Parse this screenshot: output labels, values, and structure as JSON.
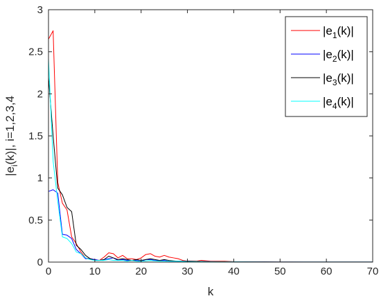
{
  "chart_data": {
    "type": "line",
    "xlabel": "k",
    "ylabel": "|e_i(k)|, i=1,2,3,4",
    "ylabel_parts": {
      "pre": "|e",
      "sub": "i",
      "post": "(k)|, i=1,2,3,4"
    },
    "xlim": [
      0,
      70
    ],
    "ylim": [
      0,
      3
    ],
    "x_ticks": [
      0,
      10,
      20,
      30,
      40,
      50,
      60,
      70
    ],
    "x_tick_labels": [
      "0",
      "10",
      "20",
      "30",
      "40",
      "50",
      "60",
      "70"
    ],
    "y_ticks": [
      0,
      0.5,
      1,
      1.5,
      2,
      2.5,
      3
    ],
    "y_tick_labels": [
      "0",
      "0.5",
      "1",
      "1.5",
      "2",
      "2.5",
      "3"
    ],
    "grid": false,
    "legend_position": "top-right",
    "series": [
      {
        "name": "|e1(k)|",
        "label_pre": "|e",
        "label_sub": "1",
        "label_post": "(k)|",
        "color": "#ff0000",
        "points": [
          [
            0,
            2.65
          ],
          [
            1,
            2.75
          ],
          [
            2,
            0.95
          ],
          [
            3,
            0.7
          ],
          [
            4,
            0.62
          ],
          [
            5,
            0.3
          ],
          [
            6,
            0.22
          ],
          [
            7,
            0.12
          ],
          [
            8,
            0.05
          ],
          [
            9,
            0.04
          ],
          [
            10,
            0.03
          ],
          [
            11,
            0.02
          ],
          [
            12,
            0.06
          ],
          [
            13,
            0.11
          ],
          [
            14,
            0.1
          ],
          [
            15,
            0.05
          ],
          [
            16,
            0.08
          ],
          [
            17,
            0.04
          ],
          [
            18,
            0.04
          ],
          [
            19,
            0.03
          ],
          [
            20,
            0.05
          ],
          [
            21,
            0.09
          ],
          [
            22,
            0.1
          ],
          [
            23,
            0.07
          ],
          [
            24,
            0.06
          ],
          [
            25,
            0.08
          ],
          [
            26,
            0.06
          ],
          [
            27,
            0.05
          ],
          [
            28,
            0.04
          ],
          [
            29,
            0.02
          ],
          [
            30,
            0.01
          ],
          [
            32,
            0.01
          ],
          [
            33,
            0.02
          ],
          [
            35,
            0.01
          ],
          [
            38,
            0.01
          ],
          [
            40,
            0.005
          ],
          [
            45,
            0.003
          ],
          [
            50,
            0.002
          ],
          [
            55,
            0.001
          ],
          [
            60,
            0.001
          ],
          [
            65,
            0.001
          ],
          [
            70,
            0.001
          ]
        ]
      },
      {
        "name": "|e2(k)|",
        "label_pre": "|e",
        "label_sub": "2",
        "label_post": "(k)|",
        "color": "#0000ff",
        "points": [
          [
            0,
            0.84
          ],
          [
            1,
            0.86
          ],
          [
            2,
            0.82
          ],
          [
            3,
            0.33
          ],
          [
            4,
            0.32
          ],
          [
            5,
            0.28
          ],
          [
            6,
            0.15
          ],
          [
            7,
            0.1
          ],
          [
            8,
            0.04
          ],
          [
            9,
            0.04
          ],
          [
            10,
            0.03
          ],
          [
            11,
            0.02
          ],
          [
            12,
            0.03
          ],
          [
            13,
            0.04
          ],
          [
            14,
            0.05
          ],
          [
            15,
            0.02
          ],
          [
            16,
            0.03
          ],
          [
            17,
            0.02
          ],
          [
            18,
            0.02
          ],
          [
            19,
            0.02
          ],
          [
            20,
            0.01
          ],
          [
            21,
            0.03
          ],
          [
            22,
            0.03
          ],
          [
            23,
            0.02
          ],
          [
            24,
            0.02
          ],
          [
            25,
            0.02
          ],
          [
            26,
            0.01
          ],
          [
            28,
            0.01
          ],
          [
            30,
            0.01
          ],
          [
            35,
            0.005
          ],
          [
            40,
            0.003
          ],
          [
            45,
            0.002
          ],
          [
            50,
            0.001
          ],
          [
            60,
            0.001
          ],
          [
            70,
            0.001
          ]
        ]
      },
      {
        "name": "|e3(k)|",
        "label_pre": "|e",
        "label_sub": "3",
        "label_post": "(k)|",
        "color": "#000000",
        "points": [
          [
            0,
            2.2
          ],
          [
            1,
            1.5
          ],
          [
            2,
            0.88
          ],
          [
            3,
            0.8
          ],
          [
            4,
            0.65
          ],
          [
            5,
            0.6
          ],
          [
            6,
            0.2
          ],
          [
            7,
            0.15
          ],
          [
            8,
            0.08
          ],
          [
            9,
            0.04
          ],
          [
            10,
            0.02
          ],
          [
            11,
            0.02
          ],
          [
            12,
            0.03
          ],
          [
            13,
            0.07
          ],
          [
            14,
            0.05
          ],
          [
            15,
            0.03
          ],
          [
            16,
            0.04
          ],
          [
            17,
            0.03
          ],
          [
            18,
            0.02
          ],
          [
            19,
            0.03
          ],
          [
            20,
            0.02
          ],
          [
            21,
            0.03
          ],
          [
            22,
            0.04
          ],
          [
            23,
            0.03
          ],
          [
            24,
            0.02
          ],
          [
            25,
            0.03
          ],
          [
            26,
            0.02
          ],
          [
            28,
            0.01
          ],
          [
            30,
            0.01
          ],
          [
            35,
            0.005
          ],
          [
            40,
            0.003
          ],
          [
            45,
            0.002
          ],
          [
            50,
            0.001
          ],
          [
            60,
            0.001
          ],
          [
            70,
            0.001
          ]
        ]
      },
      {
        "name": "|e4(k)|",
        "label_pre": "|e",
        "label_sub": "4",
        "label_post": "(k)|",
        "color": "#00ffff",
        "points": [
          [
            0,
            2.42
          ],
          [
            1,
            1.2
          ],
          [
            2,
            0.72
          ],
          [
            3,
            0.3
          ],
          [
            4,
            0.28
          ],
          [
            5,
            0.22
          ],
          [
            6,
            0.12
          ],
          [
            7,
            0.1
          ],
          [
            8,
            0.05
          ],
          [
            9,
            0.03
          ],
          [
            10,
            0.02
          ],
          [
            11,
            0.02
          ],
          [
            12,
            0.02
          ],
          [
            13,
            0.03
          ],
          [
            14,
            0.02
          ],
          [
            15,
            0.02
          ],
          [
            16,
            0.02
          ],
          [
            17,
            0.01
          ],
          [
            18,
            0.02
          ],
          [
            19,
            0.01
          ],
          [
            20,
            0.01
          ],
          [
            22,
            0.02
          ],
          [
            24,
            0.01
          ],
          [
            26,
            0.01
          ],
          [
            28,
            0.01
          ],
          [
            30,
            0.005
          ],
          [
            35,
            0.003
          ],
          [
            40,
            0.002
          ],
          [
            50,
            0.001
          ],
          [
            60,
            0.001
          ],
          [
            70,
            0.001
          ]
        ]
      }
    ]
  }
}
